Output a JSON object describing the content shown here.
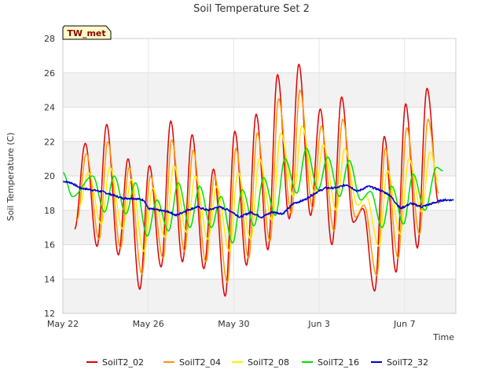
{
  "chart_data": {
    "type": "line",
    "title": "Soil Temperature Set 2",
    "xlabel": "Time",
    "ylabel": "Soil Temperature (C)",
    "site_tag": "TW_met",
    "xlim_days": [
      0,
      18.4
    ],
    "ylim": [
      12,
      28
    ],
    "y_ticks": [
      12,
      14,
      16,
      18,
      20,
      22,
      24,
      26,
      28
    ],
    "x_ticks": [
      {
        "day": 0,
        "label": "May 22"
      },
      {
        "day": 4,
        "label": "May 26"
      },
      {
        "day": 8,
        "label": "May 30"
      },
      {
        "day": 12,
        "label": "Jun 3"
      },
      {
        "day": 16,
        "label": "Jun 7"
      }
    ],
    "grid": true,
    "legend_position": "bottom",
    "series": [
      {
        "name": "SoilT2_02",
        "color": "#e00000",
        "maxima": [
          [
            1.05,
            21.9
          ],
          [
            2.05,
            23.0
          ],
          [
            3.05,
            21.0
          ],
          [
            4.05,
            20.6
          ],
          [
            5.05,
            23.2
          ],
          [
            6.05,
            22.4
          ],
          [
            7.05,
            20.4
          ],
          [
            8.05,
            22.6
          ],
          [
            9.05,
            23.6
          ],
          [
            10.05,
            25.9
          ],
          [
            11.05,
            26.5
          ],
          [
            12.05,
            23.9
          ],
          [
            13.05,
            24.6
          ],
          [
            14.05,
            18.1
          ],
          [
            15.05,
            22.3
          ],
          [
            16.05,
            24.2
          ],
          [
            17.05,
            25.1
          ]
        ],
        "minima": [
          [
            0.55,
            16.9
          ],
          [
            1.6,
            15.9
          ],
          [
            2.6,
            15.4
          ],
          [
            3.6,
            13.4
          ],
          [
            4.6,
            14.7
          ],
          [
            5.6,
            15.0
          ],
          [
            6.6,
            14.6
          ],
          [
            7.6,
            13.0
          ],
          [
            8.6,
            14.8
          ],
          [
            9.6,
            15.7
          ],
          [
            10.6,
            17.5
          ],
          [
            11.6,
            17.7
          ],
          [
            12.6,
            16.0
          ],
          [
            13.6,
            17.3
          ],
          [
            14.6,
            13.3
          ],
          [
            15.6,
            14.4
          ],
          [
            16.6,
            15.8
          ],
          [
            17.6,
            18.4
          ]
        ]
      },
      {
        "name": "SoilT2_04",
        "color": "#ff9900",
        "maxima": [
          [
            1.1,
            21.3
          ],
          [
            2.1,
            22.0
          ],
          [
            3.1,
            20.5
          ],
          [
            4.1,
            20.0
          ],
          [
            5.1,
            22.1
          ],
          [
            6.1,
            21.5
          ],
          [
            7.1,
            20.0
          ],
          [
            8.1,
            21.6
          ],
          [
            9.1,
            22.5
          ],
          [
            10.1,
            24.5
          ],
          [
            11.1,
            25.0
          ],
          [
            12.1,
            22.9
          ],
          [
            13.1,
            23.3
          ],
          [
            14.1,
            18.3
          ],
          [
            15.1,
            21.6
          ],
          [
            16.1,
            22.8
          ],
          [
            17.1,
            23.3
          ]
        ],
        "minima": [
          [
            0.65,
            17.4
          ],
          [
            1.7,
            16.3
          ],
          [
            2.7,
            15.8
          ],
          [
            3.7,
            14.3
          ],
          [
            4.7,
            15.2
          ],
          [
            5.7,
            15.6
          ],
          [
            6.7,
            15.0
          ],
          [
            7.7,
            13.8
          ],
          [
            8.7,
            15.2
          ],
          [
            9.7,
            16.2
          ],
          [
            10.7,
            17.8
          ],
          [
            11.7,
            18.1
          ],
          [
            12.7,
            16.8
          ],
          [
            13.7,
            17.6
          ],
          [
            14.7,
            14.2
          ],
          [
            15.7,
            15.2
          ],
          [
            16.7,
            16.6
          ],
          [
            17.6,
            19.0
          ]
        ]
      },
      {
        "name": "SoilT2_08",
        "color": "#ffee00",
        "maxima": [
          [
            1.2,
            20.2
          ],
          [
            2.2,
            20.5
          ],
          [
            3.2,
            19.8
          ],
          [
            4.2,
            19.3
          ],
          [
            5.2,
            20.6
          ],
          [
            6.2,
            20.0
          ],
          [
            7.2,
            19.4
          ],
          [
            8.2,
            20.2
          ],
          [
            9.2,
            21.0
          ],
          [
            10.2,
            22.5
          ],
          [
            11.2,
            22.9
          ],
          [
            12.2,
            21.8
          ],
          [
            13.2,
            21.6
          ],
          [
            14.2,
            18.8
          ],
          [
            15.2,
            20.3
          ],
          [
            16.2,
            21.0
          ],
          [
            17.2,
            21.4
          ]
        ],
        "minima": [
          [
            0.75,
            18.2
          ],
          [
            1.8,
            17.2
          ],
          [
            2.8,
            16.9
          ],
          [
            3.8,
            15.6
          ],
          [
            4.8,
            16.4
          ],
          [
            5.8,
            16.7
          ],
          [
            6.8,
            16.3
          ],
          [
            7.8,
            15.6
          ],
          [
            8.8,
            16.3
          ],
          [
            9.8,
            17.4
          ],
          [
            10.8,
            18.8
          ],
          [
            11.8,
            19.0
          ],
          [
            12.8,
            18.0
          ],
          [
            13.8,
            18.3
          ],
          [
            14.8,
            15.9
          ],
          [
            15.8,
            16.6
          ],
          [
            16.8,
            17.9
          ],
          [
            17.6,
            19.7
          ]
        ]
      },
      {
        "name": "SoilT2_16",
        "color": "#00dd00",
        "maxima": [
          [
            0.0,
            20.2
          ],
          [
            1.4,
            20.0
          ],
          [
            2.4,
            20.0
          ],
          [
            3.4,
            19.6
          ],
          [
            4.4,
            18.6
          ],
          [
            5.4,
            19.6
          ],
          [
            6.4,
            19.4
          ],
          [
            7.4,
            18.8
          ],
          [
            8.4,
            19.2
          ],
          [
            9.4,
            19.9
          ],
          [
            10.4,
            21.0
          ],
          [
            11.4,
            21.6
          ],
          [
            12.4,
            21.1
          ],
          [
            13.4,
            20.9
          ],
          [
            14.4,
            19.1
          ],
          [
            15.4,
            19.4
          ],
          [
            16.4,
            20.1
          ],
          [
            17.5,
            20.5
          ]
        ],
        "minima": [
          [
            0.45,
            18.8
          ],
          [
            1.95,
            17.9
          ],
          [
            2.95,
            17.8
          ],
          [
            3.95,
            16.5
          ],
          [
            4.95,
            16.8
          ],
          [
            5.95,
            17.0
          ],
          [
            6.95,
            17.0
          ],
          [
            7.95,
            16.1
          ],
          [
            8.95,
            17.1
          ],
          [
            9.95,
            17.7
          ],
          [
            10.95,
            19.0
          ],
          [
            11.95,
            19.2
          ],
          [
            12.95,
            18.8
          ],
          [
            13.95,
            18.6
          ],
          [
            14.95,
            17.0
          ],
          [
            15.95,
            17.2
          ],
          [
            16.95,
            18.0
          ],
          [
            17.8,
            20.3
          ]
        ]
      },
      {
        "name": "SoilT2_32",
        "color": "#0000cc",
        "points": [
          [
            0.0,
            19.7
          ],
          [
            0.4,
            19.6
          ],
          [
            0.8,
            19.3
          ],
          [
            1.3,
            19.2
          ],
          [
            1.8,
            19.1
          ],
          [
            2.3,
            18.9
          ],
          [
            2.8,
            18.7
          ],
          [
            3.3,
            18.7
          ],
          [
            3.8,
            18.6
          ],
          [
            4.0,
            18.1
          ],
          [
            4.5,
            18.0
          ],
          [
            5.0,
            17.9
          ],
          [
            5.3,
            17.7
          ],
          [
            5.8,
            18.0
          ],
          [
            6.3,
            18.2
          ],
          [
            6.8,
            18.0
          ],
          [
            7.3,
            18.2
          ],
          [
            7.8,
            18.0
          ],
          [
            8.3,
            17.6
          ],
          [
            8.8,
            17.9
          ],
          [
            9.3,
            17.6
          ],
          [
            9.8,
            17.9
          ],
          [
            10.3,
            17.8
          ],
          [
            10.8,
            18.4
          ],
          [
            11.3,
            18.6
          ],
          [
            11.8,
            19.0
          ],
          [
            12.3,
            19.3
          ],
          [
            12.8,
            19.3
          ],
          [
            13.3,
            19.5
          ],
          [
            13.8,
            19.1
          ],
          [
            14.3,
            19.4
          ],
          [
            14.8,
            19.2
          ],
          [
            15.3,
            18.9
          ],
          [
            15.8,
            18.1
          ],
          [
            16.3,
            18.4
          ],
          [
            16.8,
            18.2
          ],
          [
            17.3,
            18.4
          ],
          [
            17.8,
            18.6
          ],
          [
            18.3,
            18.6
          ]
        ]
      }
    ]
  }
}
